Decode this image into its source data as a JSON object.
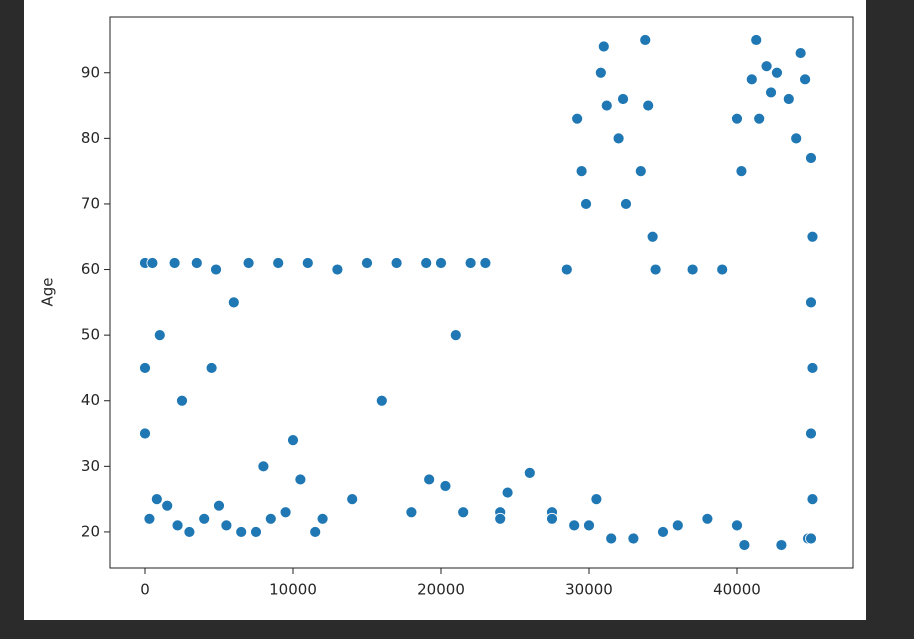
{
  "chart_data": {
    "type": "scatter",
    "y_label": "Age",
    "color": "#1f77b4",
    "x": [
      0,
      0,
      0,
      300,
      500,
      800,
      1000,
      1500,
      2000,
      2200,
      2500,
      3000,
      3500,
      4000,
      4500,
      4800,
      5000,
      5500,
      6000,
      6500,
      7000,
      7500,
      8000,
      8500,
      9000,
      9500,
      10000,
      10500,
      11000,
      11500,
      12000,
      13000,
      14000,
      15000,
      16000,
      17000,
      18000,
      19000,
      19200,
      20000,
      20300,
      21000,
      21500,
      22000,
      23000,
      24000,
      24000,
      24500,
      26000,
      27500,
      27500,
      28500,
      29000,
      29200,
      29500,
      29800,
      30000,
      30500,
      30800,
      31000,
      31200,
      31500,
      32000,
      32300,
      32500,
      33000,
      33500,
      33800,
      34000,
      34300,
      34500,
      35000,
      36000,
      37000,
      38000,
      39000,
      40000,
      40000,
      40300,
      40500,
      41000,
      41300,
      41500,
      42000,
      42300,
      42700,
      43000,
      43500,
      44000,
      44300,
      44600,
      44800,
      45000,
      45000,
      45000,
      45000,
      45100,
      45100,
      45100
    ],
    "y": [
      61,
      35,
      45,
      22,
      61,
      25,
      50,
      24,
      61,
      21,
      40,
      20,
      61,
      22,
      45,
      60,
      24,
      21,
      55,
      20,
      61,
      20,
      30,
      22,
      61,
      23,
      34,
      28,
      61,
      20,
      22,
      60,
      25,
      61,
      40,
      61,
      23,
      61,
      28,
      61,
      27,
      50,
      23,
      61,
      61,
      23,
      22,
      26,
      29,
      23,
      22,
      60,
      21,
      83,
      75,
      70,
      21,
      25,
      90,
      94,
      85,
      19,
      80,
      86,
      70,
      19,
      75,
      95,
      85,
      65,
      60,
      20,
      21,
      60,
      22,
      60,
      21,
      83,
      75,
      18,
      89,
      95,
      83,
      91,
      87,
      90,
      18,
      86,
      80,
      93,
      89,
      19,
      77,
      55,
      35,
      19,
      65,
      45,
      25
    ],
    "xlim": [
      -2365,
      47838
    ],
    "ylim": [
      14.5,
      98.5
    ],
    "xticks": [
      0,
      10000,
      20000,
      30000,
      40000
    ],
    "yticks": [
      20,
      30,
      40,
      50,
      60,
      70,
      80,
      90
    ]
  }
}
